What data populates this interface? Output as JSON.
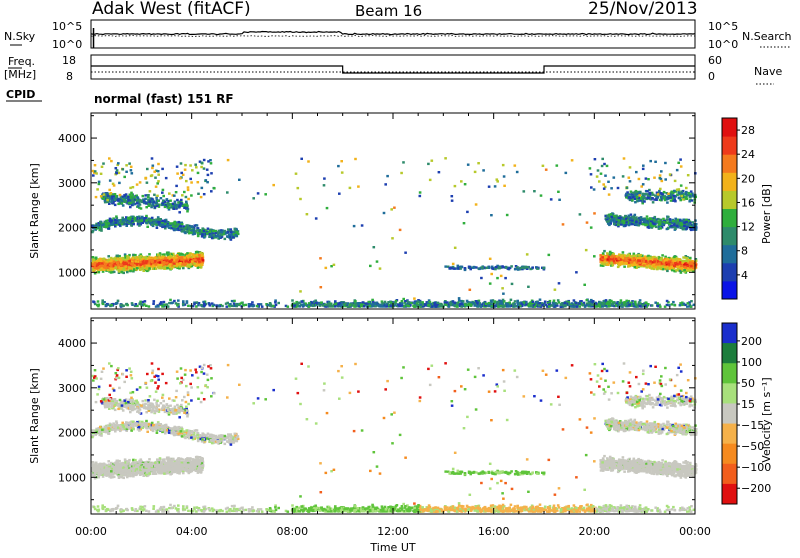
{
  "header": {
    "station": "Adak West (fitACF)",
    "beam": "Beam 16",
    "date": "25/Nov/2013",
    "mode": "normal (fast) 151 RF"
  },
  "top_panels": {
    "nsky_label": "N.Sky",
    "nsky_ticks": [
      "10^5",
      "10^0"
    ],
    "nsearch_label": "N.Search",
    "nsearch_ticks": [
      "10^5",
      "10^0"
    ],
    "freq_label": "Freq.",
    "freq_unit": "[MHz]",
    "freq_ticks": [
      "18",
      "8"
    ],
    "nave_label": "Nave",
    "nave_ticks": [
      "60",
      "0"
    ],
    "cpid_label": "CPID"
  },
  "chart_data": [
    {
      "type": "heatmap",
      "name": "power-panel",
      "ylabel": "Slant Range [km]",
      "ylim": [
        180,
        4560
      ],
      "yticks": [
        "1000",
        "2000",
        "3000",
        "4000"
      ],
      "xlim_hours": [
        0,
        24
      ],
      "colorbar": {
        "label": "Power [dB]",
        "ticks": [
          "4",
          "8",
          "12",
          "16",
          "20",
          "24",
          "28"
        ],
        "colors": [
          "#0a14e6",
          "#1d3fb0",
          "#1f6d9a",
          "#2e8b6b",
          "#2fae3c",
          "#b7c92b",
          "#f2b21b",
          "#f47a1e",
          "#ee3a1b",
          "#e01010"
        ]
      }
    },
    {
      "type": "heatmap",
      "name": "velocity-panel",
      "ylabel": "Slant Range [km]",
      "ylim": [
        180,
        4560
      ],
      "yticks": [
        "1000",
        "2000",
        "3000",
        "4000"
      ],
      "xlim_hours": [
        0,
        24
      ],
      "colorbar": {
        "label": "Velocity [m s⁻¹]",
        "ticks": [
          "200",
          "100",
          "50",
          "15",
          "−15",
          "−50",
          "−100",
          "−200"
        ],
        "colors": [
          "#1a2ecc",
          "#1c7d3c",
          "#5fc43a",
          "#a8e07c",
          "#c8c8c0",
          "#f5b14a",
          "#f58a1f",
          "#f25e1c",
          "#e01010"
        ]
      }
    }
  ],
  "xaxis": {
    "label": "Time UT",
    "ticks": [
      "00:00",
      "04:00",
      "08:00",
      "12:00",
      "16:00",
      "20:00",
      "00:00"
    ]
  },
  "colors": {
    "grey_scatter": "#c8c8c0"
  }
}
